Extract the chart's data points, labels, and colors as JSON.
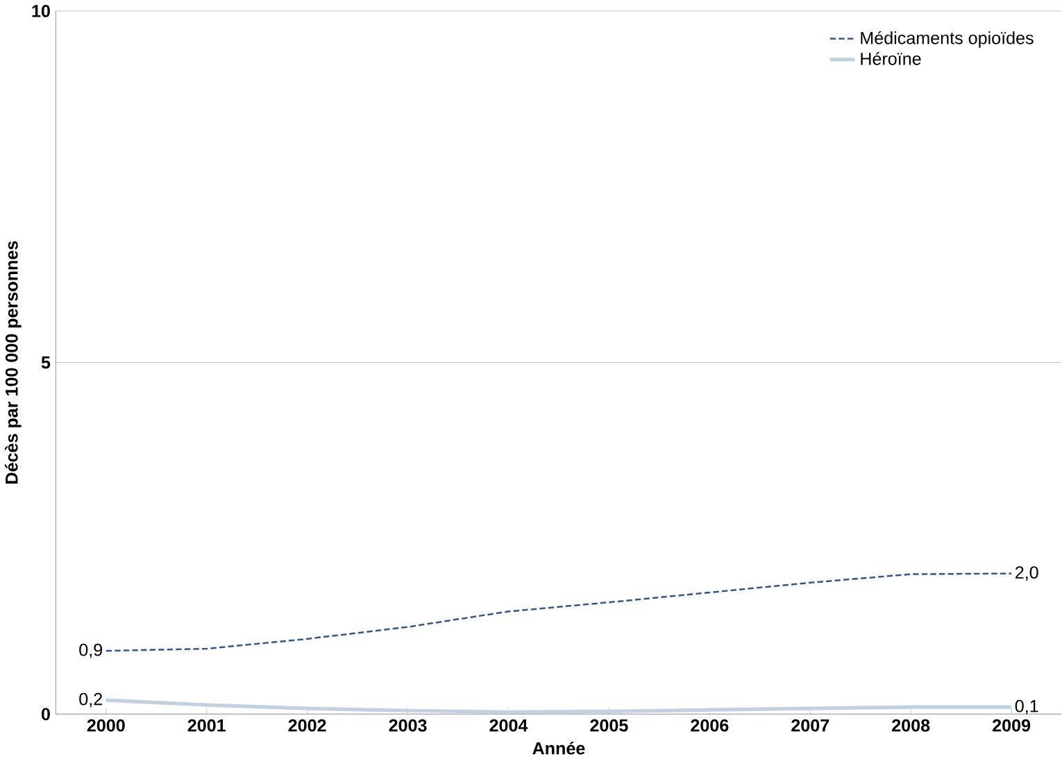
{
  "chart_data": {
    "type": "line",
    "xlabel": "Année",
    "ylabel": "Décès par 100 000 personnes",
    "categories": [
      "2000",
      "2001",
      "2002",
      "2003",
      "2004",
      "2005",
      "2006",
      "2007",
      "2008",
      "2009"
    ],
    "series": [
      {
        "name": "Médicaments opioïdes",
        "color": "#34568b",
        "line_style": "dashed",
        "values": [
          0.9,
          0.93,
          1.07,
          1.24,
          1.46,
          1.59,
          1.73,
          1.87,
          1.99,
          2.0
        ],
        "value_labels": [
          "0,9",
          null,
          null,
          null,
          null,
          null,
          null,
          null,
          null,
          "2,0"
        ]
      },
      {
        "name": "Héroïne",
        "color": "#c3d0e2",
        "line_style": "solid",
        "values": [
          0.2,
          0.13,
          0.08,
          0.05,
          0.03,
          0.04,
          0.06,
          0.08,
          0.1,
          0.1
        ],
        "value_labels": [
          "0,2",
          null,
          null,
          null,
          null,
          null,
          null,
          null,
          null,
          "0,1"
        ]
      }
    ],
    "ylim": [
      0,
      10
    ],
    "yticks": [
      0,
      5,
      10
    ],
    "grid": "y",
    "legend": "top right",
    "marker": "none"
  }
}
